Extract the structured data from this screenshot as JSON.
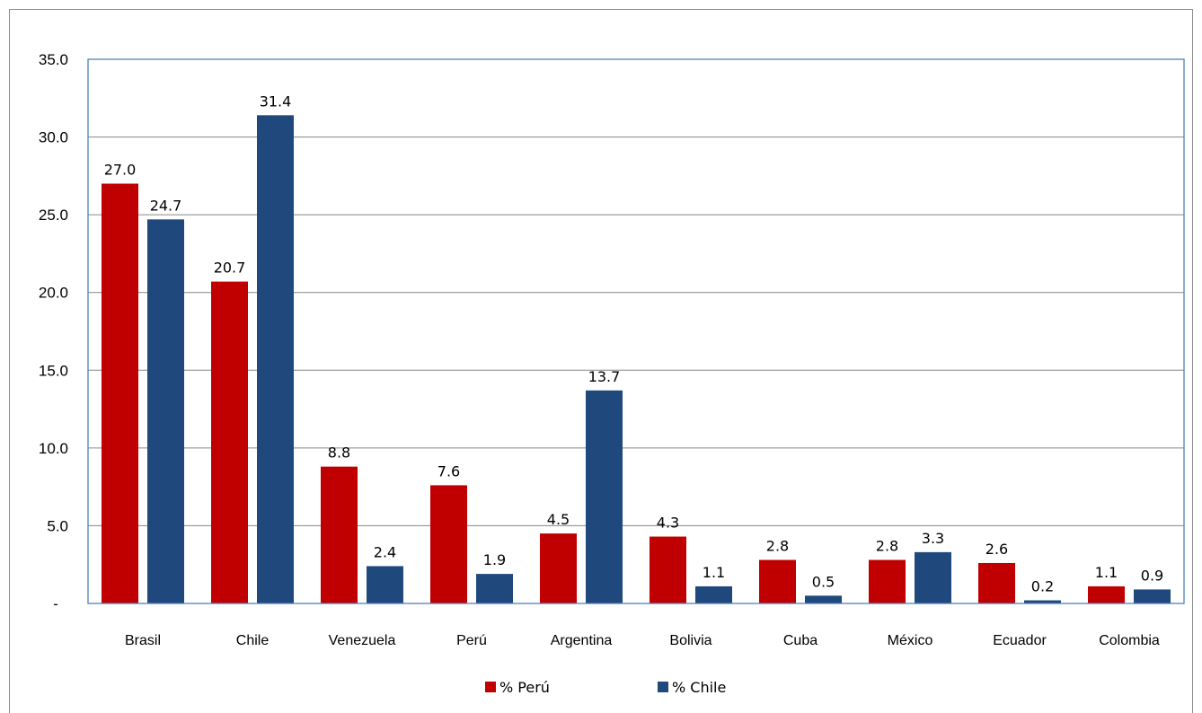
{
  "chart_data": {
    "type": "bar",
    "categories": [
      "Brasil",
      "Chile",
      "Venezuela",
      "Perú",
      "Argentina",
      "Bolivia",
      "Cuba",
      "México",
      "Ecuador",
      "Colombia"
    ],
    "series": [
      {
        "name": "% Perú",
        "color": "#C00000",
        "values": [
          27.0,
          20.7,
          8.8,
          7.6,
          4.5,
          4.3,
          2.8,
          2.8,
          2.6,
          1.1
        ]
      },
      {
        "name": "% Chile",
        "color": "#1F497D",
        "values": [
          24.7,
          31.4,
          2.4,
          1.9,
          13.7,
          1.1,
          0.5,
          3.3,
          0.2,
          0.9
        ]
      }
    ],
    "data_labels": [
      [
        "27.0",
        "20.7",
        "8.8",
        "7.6",
        "4.5",
        "4.3",
        "2.8",
        "2.8",
        "2.6",
        "1.1"
      ],
      [
        "24.7",
        "31.4",
        "2.4",
        "1.9",
        "13.7",
        "1.1",
        "0.5",
        "3.3",
        "0.2",
        "0.9"
      ]
    ],
    "ylim": [
      0,
      35
    ],
    "yticks": [
      0,
      5,
      10,
      15,
      20,
      25,
      30,
      35
    ],
    "ytick_labels": [
      "-",
      "5.0",
      "10.0",
      "15.0",
      "20.0",
      "25.0",
      "30.0",
      "35.0"
    ],
    "grid": true,
    "legend": "bottom",
    "plot_border_color": "#4F81BD",
    "grid_color": "#868686"
  }
}
